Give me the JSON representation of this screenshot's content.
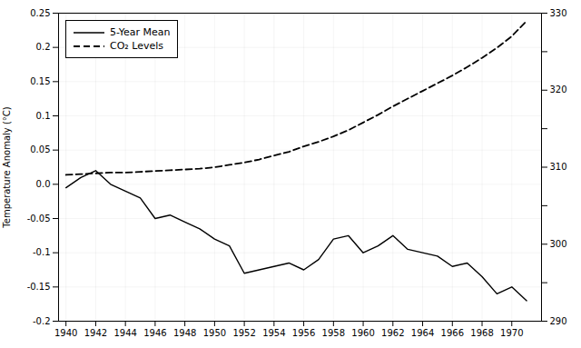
{
  "chart_data": {
    "type": "line",
    "y_label": "Temperature Anomaly (°C)",
    "x": [
      1940,
      1941,
      1942,
      1943,
      1944,
      1945,
      1946,
      1947,
      1948,
      1949,
      1950,
      1951,
      1952,
      1953,
      1954,
      1955,
      1956,
      1957,
      1958,
      1959,
      1960,
      1961,
      1962,
      1963,
      1964,
      1965,
      1966,
      1967,
      1968,
      1969,
      1970,
      1971
    ],
    "series": [
      {
        "name": "5-Year Mean",
        "color": "#000000",
        "line_style": "solid",
        "values": [
          -0.005,
          0.01,
          0.02,
          0.0,
          -0.01,
          -0.02,
          -0.05,
          -0.045,
          -0.055,
          -0.065,
          -0.08,
          -0.09,
          -0.13,
          -0.125,
          -0.12,
          -0.115,
          -0.125,
          -0.11,
          -0.08,
          -0.075,
          -0.1,
          -0.09,
          -0.075,
          -0.095,
          -0.1,
          -0.105,
          -0.12,
          -0.115,
          -0.135,
          -0.16,
          -0.15,
          -0.17
        ]
      },
      {
        "name": "CO₂ Levels",
        "color": "#000000",
        "line_style": "dashed",
        "axis": "y2",
        "values": [
          309.0,
          309.1,
          309.2,
          309.3,
          309.3,
          309.4,
          309.5,
          309.6,
          309.7,
          309.8,
          310.0,
          310.3,
          310.6,
          311.0,
          311.5,
          312.0,
          312.7,
          313.3,
          314.0,
          314.8,
          315.8,
          316.8,
          317.9,
          318.9,
          319.9,
          320.9,
          321.9,
          323.0,
          324.2,
          325.5,
          327.0,
          329.0
        ]
      }
    ],
    "xlim": [
      1939.5,
      1972
    ],
    "xticks": [
      1940,
      1942,
      1944,
      1946,
      1948,
      1950,
      1952,
      1954,
      1956,
      1958,
      1960,
      1962,
      1964,
      1966,
      1968,
      1970
    ],
    "ylim": [
      -0.2,
      0.25
    ],
    "yticks": [
      -0.2,
      -0.15,
      -0.1,
      -0.05,
      {
        "value": 0.0,
        "label": "0.0"
      },
      0.05,
      0.1,
      0.15,
      0.2,
      0.25
    ],
    "y2lim": [
      290,
      330
    ],
    "y2ticks": [
      290,
      {
        "value": 295,
        "label": ""
      },
      300,
      {
        "value": 305,
        "label": ""
      },
      310,
      {
        "value": 315,
        "label": ""
      },
      320,
      {
        "value": 325,
        "label": ""
      },
      330
    ],
    "grid": true,
    "legend": "upper left"
  }
}
